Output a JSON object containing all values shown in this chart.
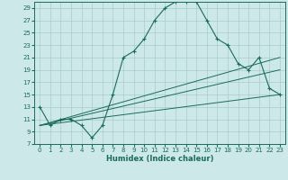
{
  "xlabel": "Humidex (Indice chaleur)",
  "background_color": "#cce8e8",
  "grid_color": "#aacccc",
  "line_color": "#1a6b5a",
  "xlim": [
    -0.5,
    23.5
  ],
  "ylim": [
    7,
    30
  ],
  "yticks": [
    7,
    9,
    11,
    13,
    15,
    17,
    19,
    21,
    23,
    25,
    27,
    29
  ],
  "xticks": [
    0,
    1,
    2,
    3,
    4,
    5,
    6,
    7,
    8,
    9,
    10,
    11,
    12,
    13,
    14,
    15,
    16,
    17,
    18,
    19,
    20,
    21,
    22,
    23
  ],
  "main_x": [
    0,
    1,
    2,
    3,
    4,
    5,
    6,
    7,
    8,
    9,
    10,
    11,
    12,
    13,
    14,
    15,
    16,
    17,
    18,
    19,
    20,
    21,
    22,
    23
  ],
  "main_y": [
    13,
    10,
    11,
    11,
    10,
    8,
    10,
    15,
    21,
    22,
    24,
    27,
    29,
    30,
    30,
    30,
    27,
    24,
    23,
    20,
    19,
    21,
    16,
    15
  ],
  "straight_lines": [
    {
      "x": [
        0,
        23
      ],
      "y": [
        10,
        21
      ]
    },
    {
      "x": [
        0,
        23
      ],
      "y": [
        10,
        19
      ]
    },
    {
      "x": [
        0,
        23
      ],
      "y": [
        10,
        15
      ]
    }
  ]
}
